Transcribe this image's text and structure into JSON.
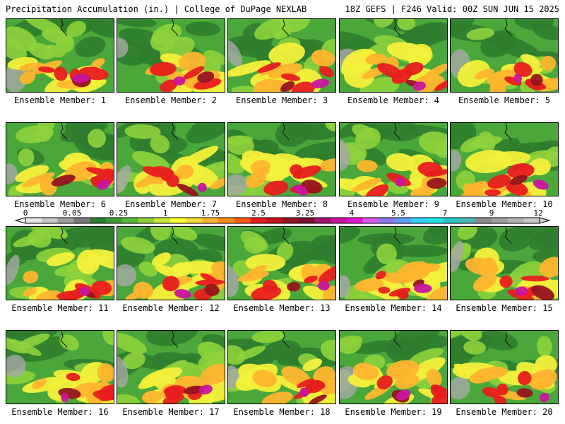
{
  "header": {
    "left": "Precipitation Accumulation (in.) | College of DuPage NEXLAB",
    "right": "18Z GEFS | F246 Valid: 00Z SUN JUN 15 2025"
  },
  "colorbar": {
    "labels": [
      "0",
      "0.05",
      "0.25",
      "1",
      "1.75",
      "2.5",
      "3.25",
      "4",
      "5.5",
      "7",
      "9",
      "12"
    ],
    "colors": [
      "#e6e6e6",
      "#c8c8c8",
      "#a0a0a0",
      "#7a7a7a",
      "#2f7d2f",
      "#3f9a36",
      "#56b83a",
      "#8ed13c",
      "#c8e63a",
      "#ffff33",
      "#ffd93a",
      "#ffb52e",
      "#ff8c1a",
      "#ff5a14",
      "#e81e1e",
      "#c3141e",
      "#96141e",
      "#7a1030",
      "#a01470",
      "#c814a0",
      "#e614d2",
      "#d25aff",
      "#8c78ff",
      "#5aa0ff",
      "#32d2ff",
      "#1ee6e6",
      "#28c8c8",
      "#50b4b4",
      "#8c8c8c",
      "#a0a0a0",
      "#b4b4b4",
      "#c8c8c8"
    ]
  },
  "members": [
    {
      "label": "Ensemble Member: 1"
    },
    {
      "label": "Ensemble Member: 2"
    },
    {
      "label": "Ensemble Member: 3"
    },
    {
      "label": "Ensemble Member: 4"
    },
    {
      "label": "Ensemble Member: 5"
    },
    {
      "label": "Ensemble Member: 6"
    },
    {
      "label": "Ensemble Member: 7"
    },
    {
      "label": "Ensemble Member: 8"
    },
    {
      "label": "Ensemble Member: 9"
    },
    {
      "label": "Ensemble Member: 10"
    },
    {
      "label": "Ensemble Member: 11"
    },
    {
      "label": "Ensemble Member: 12"
    },
    {
      "label": "Ensemble Member: 13"
    },
    {
      "label": "Ensemble Member: 14"
    },
    {
      "label": "Ensemble Member: 15"
    },
    {
      "label": "Ensemble Member: 16"
    },
    {
      "label": "Ensemble Member: 17"
    },
    {
      "label": "Ensemble Member: 18"
    },
    {
      "label": "Ensemble Member: 19"
    },
    {
      "label": "Ensemble Member: 20"
    }
  ]
}
